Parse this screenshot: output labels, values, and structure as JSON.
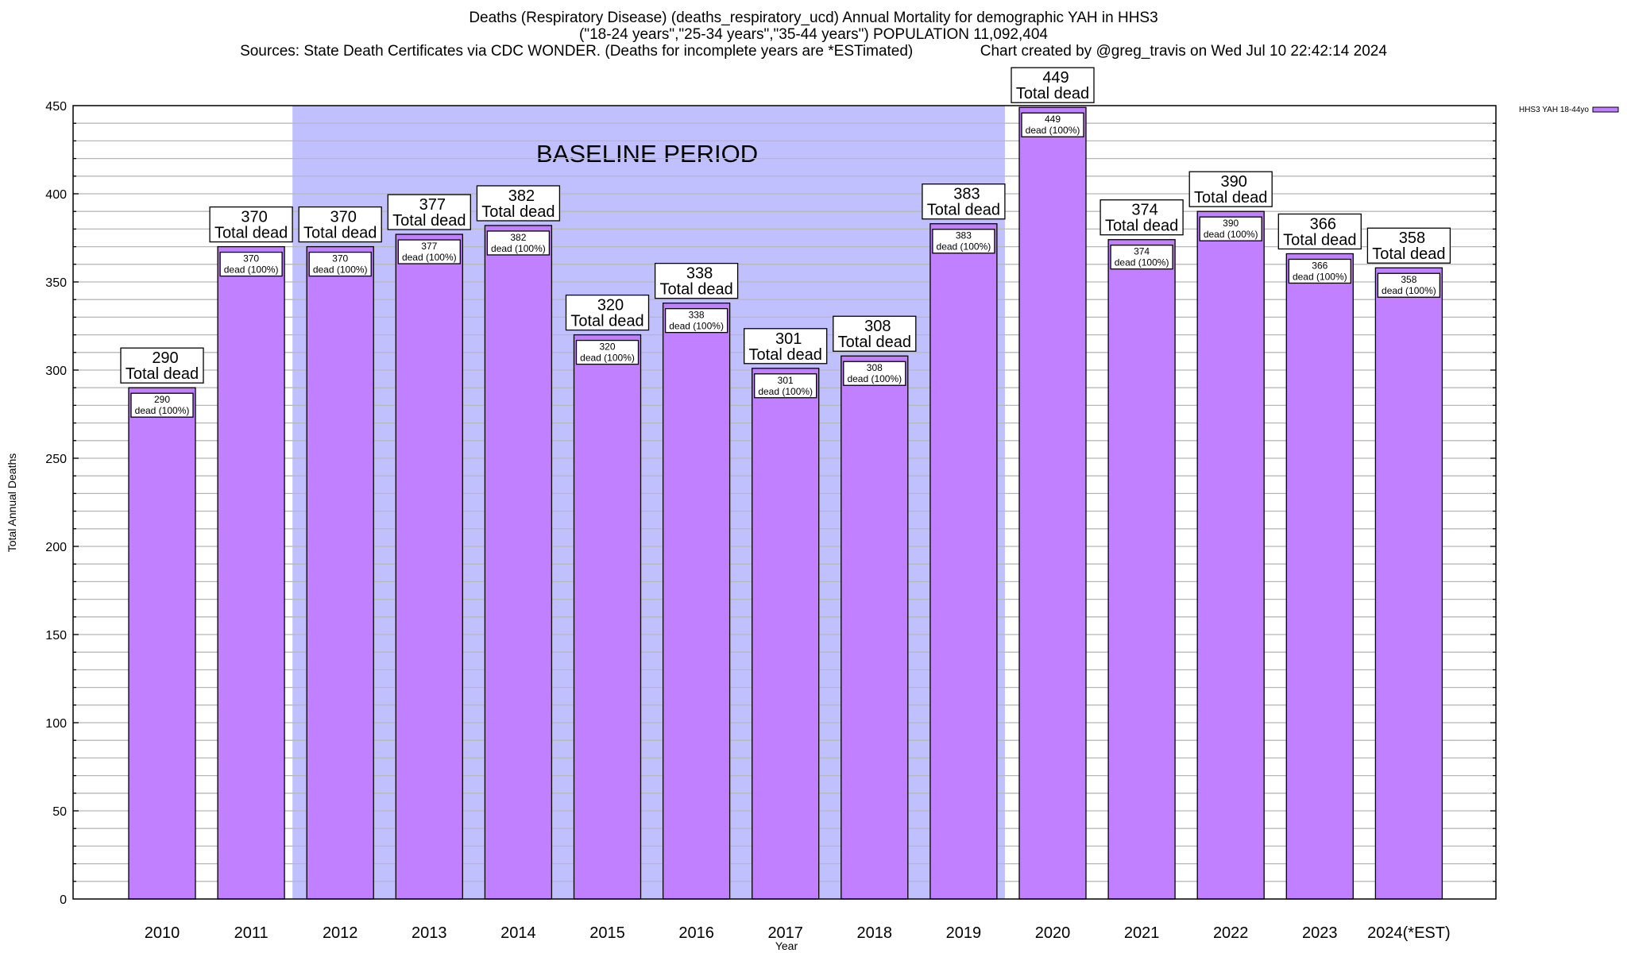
{
  "header": {
    "title_line1": "Deaths (Respiratory Disease) (deaths_respiratory_ucd) Annual Mortality for demographic YAH in HHS3",
    "title_line2": "(\"18-24 years\",\"25-34 years\",\"35-44 years\") POPULATION 11,092,404",
    "title_line3": "Sources: State Death Certificates via CDC WONDER. (Deaths for incomplete years are *ESTimated)                Chart created by @greg_travis on Wed Jul 10 22:42:14 2024"
  },
  "chart_data": {
    "type": "bar",
    "title": "Deaths (Respiratory Disease) (deaths_respiratory_ucd) Annual Mortality for demographic YAH in HHS3",
    "xlabel": "Year",
    "ylabel": "Total Annual Deaths",
    "ylim": [
      0,
      450
    ],
    "y_ticks": [
      0,
      50,
      100,
      150,
      200,
      250,
      300,
      350,
      400,
      450
    ],
    "y_minor_step": 10,
    "grid": true,
    "categories": [
      "2010",
      "2011",
      "2012",
      "2013",
      "2014",
      "2015",
      "2016",
      "2017",
      "2018",
      "2019",
      "2020",
      "2021",
      "2022",
      "2023",
      "2024(*EST)"
    ],
    "series": [
      {
        "name": "HHS3 YAH 18-44yo",
        "color": "#c080ff",
        "values": [
          290,
          370,
          370,
          377,
          382,
          320,
          338,
          301,
          308,
          383,
          449,
          374,
          390,
          366,
          358
        ]
      }
    ],
    "total_label_suffix": "Total dead",
    "inner_label_suffix": "dead (100%)",
    "legend": {
      "position": "top-right",
      "entries": [
        "HHS3 YAH 18-44yo"
      ]
    },
    "annotation": {
      "text": "BASELINE PERIOD",
      "from_category": "2012",
      "to_category": "2019",
      "color": "#c0c0ff"
    }
  }
}
